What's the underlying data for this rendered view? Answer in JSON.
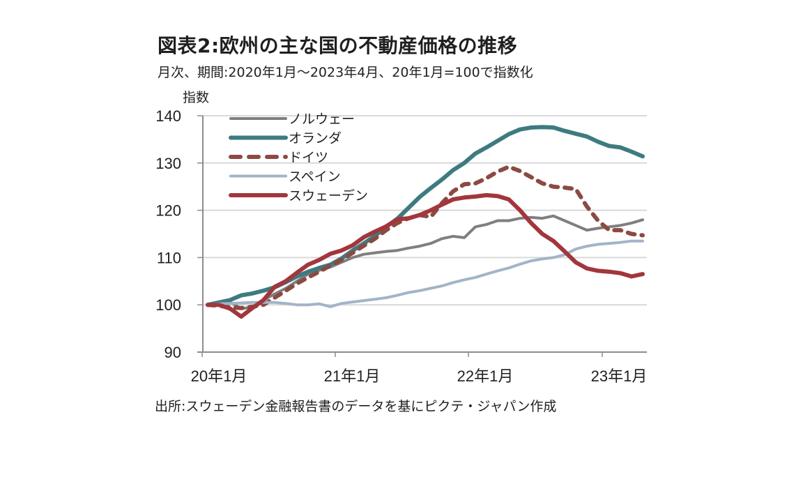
{
  "chart_data": {
    "type": "line",
    "title": "図表2:欧州の主な国の不動産価格の推移",
    "subtitle": "月次、期間:2020年1月～2023年4月、20年1月=100で指数化",
    "ylabel": "指数",
    "xlabel": "",
    "source": "出所:スウェーデン金融報告書のデータを基にピクテ・ジャパン作成",
    "ylim": [
      90,
      140
    ],
    "yticks": [
      "140",
      "130",
      "120",
      "110",
      "100",
      "90"
    ],
    "ytick_values": [
      140,
      130,
      120,
      110,
      100,
      90
    ],
    "xtick_labels": [
      "20年1月",
      "21年1月",
      "22年1月",
      "23年1月"
    ],
    "xtick_index": [
      0,
      12,
      24,
      36
    ],
    "x_start": "2020-01",
    "x_end": "2023-04",
    "grid": "horizontal",
    "legend_position": "top-left",
    "series": [
      {
        "name": "ノルウェー",
        "color": "#7f7f7f",
        "style": "solid",
        "values": [
          100.0,
          100.3,
          100.6,
          99.2,
          99.5,
          101.0,
          102.3,
          103.5,
          105.0,
          106.5,
          107.3,
          108.0,
          109.0,
          110.0,
          110.7,
          111.0,
          111.3,
          111.5,
          112.0,
          112.4,
          113.0,
          114.0,
          114.5,
          114.2,
          116.5,
          117.0,
          117.8,
          117.8,
          118.3,
          118.5,
          118.3,
          118.8,
          117.8,
          116.8,
          115.8,
          116.2,
          116.5,
          116.8,
          117.3,
          118.0
        ]
      },
      {
        "name": "オランダ",
        "color": "#3d7b80",
        "style": "solid",
        "values": [
          100.0,
          100.5,
          101.0,
          102.0,
          102.4,
          103.0,
          103.7,
          104.8,
          106.0,
          107.0,
          107.8,
          108.5,
          109.8,
          111.5,
          113.0,
          114.6,
          116.5,
          118.2,
          120.5,
          122.8,
          124.7,
          126.5,
          128.5,
          130.0,
          132.0,
          133.3,
          134.7,
          136.1,
          137.1,
          137.5,
          137.6,
          137.5,
          136.8,
          136.2,
          135.6,
          134.5,
          133.6,
          133.3,
          132.4,
          131.4
        ]
      },
      {
        "name": "ドイツ",
        "color": "#8b4a42",
        "style": "dashed",
        "values": [
          100.0,
          99.8,
          99.5,
          99.3,
          99.6,
          100.0,
          101.5,
          103.0,
          104.5,
          105.8,
          107.0,
          108.3,
          109.5,
          111.0,
          112.5,
          114.0,
          115.8,
          117.3,
          118.3,
          119.0,
          118.6,
          121.5,
          124.0,
          125.5,
          125.7,
          126.8,
          128.2,
          129.2,
          128.3,
          127.0,
          125.7,
          125.0,
          124.8,
          124.5,
          120.8,
          117.8,
          115.8,
          115.8,
          115.0,
          114.7
        ]
      },
      {
        "name": "スペイン",
        "color": "#a3b4c8",
        "style": "solid",
        "values": [
          100.0,
          100.2,
          100.3,
          100.4,
          100.5,
          100.5,
          100.5,
          100.3,
          100.0,
          100.0,
          100.2,
          99.6,
          100.3,
          100.6,
          100.9,
          101.2,
          101.5,
          102.0,
          102.6,
          103.0,
          103.5,
          104.0,
          104.7,
          105.3,
          105.8,
          106.5,
          107.2,
          107.8,
          108.6,
          109.3,
          109.7,
          110.0,
          110.6,
          111.8,
          112.4,
          112.8,
          113.0,
          113.2,
          113.5,
          113.5
        ]
      },
      {
        "name": "スウェーデン",
        "color": "#a2363d",
        "style": "solid",
        "values": [
          100.0,
          100.0,
          99.2,
          97.5,
          99.3,
          101.0,
          103.8,
          105.0,
          106.8,
          108.5,
          109.5,
          110.8,
          111.5,
          112.6,
          114.3,
          115.5,
          116.6,
          118.1,
          118.3,
          119.0,
          120.0,
          121.2,
          122.3,
          122.7,
          122.9,
          123.2,
          123.0,
          122.3,
          120.0,
          117.3,
          115.0,
          113.5,
          111.3,
          109.0,
          107.7,
          107.2,
          107.0,
          106.7,
          106.0,
          106.5
        ]
      }
    ]
  }
}
